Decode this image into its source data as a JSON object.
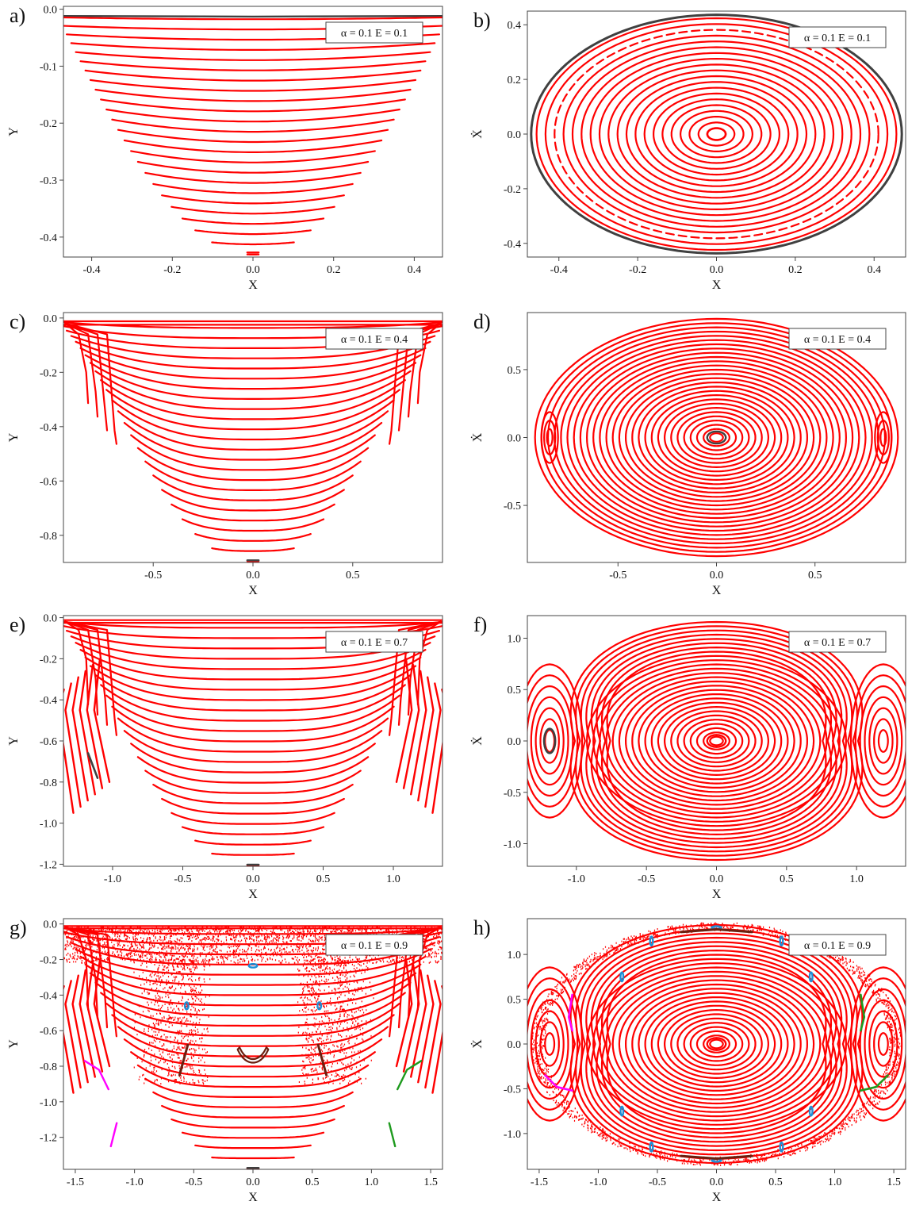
{
  "colors": {
    "main_curve": "#ff0000",
    "dark_curve": "#404040",
    "blue_island": "#1f8fd6",
    "magenta_island": "#ff00ff",
    "green_island": "#1e9a1e",
    "brown_island": "#6b1f0f"
  },
  "chart_data": [
    {
      "panel": "a)",
      "type": "scatter",
      "legend": "α = 0.1  E = 0.1",
      "xlabel": "X",
      "ylabel": "Y",
      "alpha": 0.1,
      "E": 0.1,
      "xlim": [
        -0.47,
        0.47
      ],
      "ylim": [
        -0.435,
        0.005
      ],
      "xticks": [
        -0.4,
        -0.2,
        0.0,
        0.2,
        0.4
      ],
      "xtick_labels": [
        "-0.4",
        "-0.2",
        "0.0",
        "0.2",
        "0.4"
      ],
      "yticks": [
        0.0,
        -0.1,
        -0.2,
        -0.3,
        -0.4
      ],
      "ytick_labels": [
        "0.0",
        "-0.1",
        "-0.2",
        "-0.3",
        "-0.4"
      ]
    },
    {
      "panel": "b)",
      "type": "scatter",
      "legend": "α = 0.1  E = 0.1",
      "xlabel": "X",
      "ylabel": "Ẋ",
      "alpha": 0.1,
      "E": 0.1,
      "xlim": [
        -0.48,
        0.48
      ],
      "ylim": [
        -0.45,
        0.45
      ],
      "xticks": [
        -0.4,
        -0.2,
        0.0,
        0.2,
        0.4
      ],
      "xtick_labels": [
        "-0.4",
        "-0.2",
        "0.0",
        "0.2",
        "0.4"
      ],
      "yticks": [
        0.4,
        0.2,
        0.0,
        -0.2,
        -0.4
      ],
      "ytick_labels": [
        "0.4",
        "0.2",
        "0.0",
        "-0.2",
        "-0.4"
      ]
    },
    {
      "panel": "c)",
      "type": "scatter",
      "legend": "α = 0.1  E = 0.4",
      "xlabel": "X",
      "ylabel": "Y",
      "alpha": 0.1,
      "E": 0.4,
      "xlim": [
        -0.95,
        0.95
      ],
      "ylim": [
        -0.9,
        0.02
      ],
      "xticks": [
        -0.5,
        0.0,
        0.5
      ],
      "xtick_labels": [
        "-0.5",
        "0.0",
        "0.5"
      ],
      "yticks": [
        0.0,
        -0.2,
        -0.4,
        -0.6,
        -0.8
      ],
      "ytick_labels": [
        "0.0",
        "-0.2",
        "-0.4",
        "-0.6",
        "-0.8"
      ]
    },
    {
      "panel": "d)",
      "type": "scatter",
      "legend": "α = 0.1  E = 0.4",
      "xlabel": "X",
      "ylabel": "Ẋ",
      "alpha": 0.1,
      "E": 0.4,
      "xlim": [
        -0.96,
        0.96
      ],
      "ylim": [
        -0.92,
        0.92
      ],
      "xticks": [
        -0.5,
        0.0,
        0.5
      ],
      "xtick_labels": [
        "-0.5",
        "0.0",
        "0.5"
      ],
      "yticks": [
        0.5,
        0.0,
        -0.5
      ],
      "ytick_labels": [
        "0.5",
        "0.0",
        "-0.5"
      ]
    },
    {
      "panel": "e)",
      "type": "scatter",
      "legend": "α = 0.1  E = 0.7",
      "xlabel": "X",
      "ylabel": "Y",
      "alpha": 0.1,
      "E": 0.7,
      "xlim": [
        -1.35,
        1.35
      ],
      "ylim": [
        -1.21,
        0.01
      ],
      "xticks": [
        -1.0,
        -0.5,
        0.0,
        0.5,
        1.0
      ],
      "xtick_labels": [
        "-1.0",
        "-0.5",
        "0.0",
        "0.5",
        "1.0"
      ],
      "yticks": [
        0.0,
        -0.2,
        -0.4,
        -0.6,
        -0.8,
        -1.0,
        -1.2
      ],
      "ytick_labels": [
        "0.0",
        "-0.2",
        "-0.4",
        "-0.6",
        "-0.8",
        "-1.0",
        "-1.2"
      ]
    },
    {
      "panel": "f)",
      "type": "scatter",
      "legend": "α = 0.1  E = 0.7",
      "xlabel": "X",
      "ylabel": "Ẋ",
      "alpha": 0.1,
      "E": 0.7,
      "xlim": [
        -1.35,
        1.35
      ],
      "ylim": [
        -1.22,
        1.22
      ],
      "xticks": [
        -1.0,
        -0.5,
        0.0,
        0.5,
        1.0
      ],
      "xtick_labels": [
        "-1.0",
        "-0.5",
        "0.0",
        "0.5",
        "1.0"
      ],
      "yticks": [
        1.0,
        0.5,
        0.0,
        -0.5,
        -1.0
      ],
      "ytick_labels": [
        "1.0",
        "0.5",
        "0.0",
        "-0.5",
        "-1.0"
      ]
    },
    {
      "panel": "g)",
      "type": "scatter",
      "legend": "α = 0.1  E = 0.9",
      "xlabel": "X",
      "ylabel": "Y",
      "alpha": 0.1,
      "E": 0.9,
      "xlim": [
        -1.6,
        1.6
      ],
      "ylim": [
        -1.38,
        0.03
      ],
      "xticks": [
        -1.5,
        -1.0,
        -0.5,
        0.0,
        0.5,
        1.0,
        1.5
      ],
      "xtick_labels": [
        "-1.5",
        "-1.0",
        "-0.5",
        "0.0",
        "0.5",
        "1.0",
        "1.5"
      ],
      "yticks": [
        0.0,
        -0.2,
        -0.4,
        -0.6,
        -0.8,
        -1.0,
        -1.2
      ],
      "ytick_labels": [
        "0.0",
        "-0.2",
        "-0.4",
        "-0.6",
        "-0.8",
        "-1.0",
        "-1.2"
      ]
    },
    {
      "panel": "h)",
      "type": "scatter",
      "legend": "α = 0.1  E = 0.9",
      "xlabel": "X",
      "ylabel": "Ẋ",
      "alpha": 0.1,
      "E": 0.9,
      "xlim": [
        -1.6,
        1.6
      ],
      "ylim": [
        -1.4,
        1.4
      ],
      "xticks": [
        -1.5,
        -1.0,
        -0.5,
        0.0,
        0.5,
        1.0,
        1.5
      ],
      "xtick_labels": [
        "-1.5",
        "-1.0",
        "-0.5",
        "0.0",
        "0.5",
        "1.0",
        "1.5"
      ],
      "yticks": [
        1.0,
        0.5,
        0.0,
        -0.5,
        -1.0
      ],
      "ytick_labels": [
        "1.0",
        "0.5",
        "0.0",
        "-0.5",
        "-1.0"
      ]
    }
  ]
}
